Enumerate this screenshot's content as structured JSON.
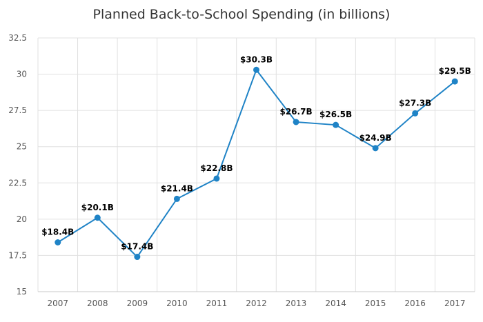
{
  "chart_data": {
    "type": "line",
    "title": "Planned Back-to-School Spending (in billions)",
    "xlabel": "",
    "ylabel": "",
    "categories": [
      "2007",
      "2008",
      "2009",
      "2010",
      "2011",
      "2012",
      "2013",
      "2014",
      "2015",
      "2016",
      "2017"
    ],
    "series": [
      {
        "values": [
          18.4,
          20.1,
          17.4,
          21.4,
          22.8,
          30.3,
          26.7,
          26.5,
          24.9,
          27.3,
          29.5
        ],
        "data_labels": [
          "$18.4B",
          "$20.1B",
          "$17.4B",
          "$21.4B",
          "$22.8B",
          "$30.3B",
          "$26.7B",
          "$26.5B",
          "$24.9B",
          "$27.3B",
          "$29.5B"
        ],
        "color": "#1f83c6"
      }
    ],
    "ylim": [
      15,
      32.5
    ],
    "yticks": [
      "15",
      "17.5",
      "20",
      "22.5",
      "25",
      "27.5",
      "30",
      "32.5"
    ],
    "grid": true,
    "legend": "none"
  }
}
